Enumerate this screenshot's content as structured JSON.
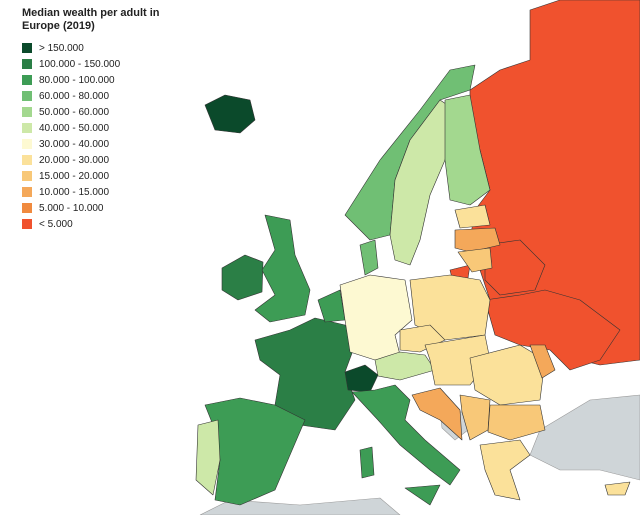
{
  "title": "Median wealth per adult in Europe (2019)",
  "legend": [
    {
      "label": "> 150.000",
      "color": "#0b4a2b"
    },
    {
      "label": "100.000 - 150.000",
      "color": "#2b7f46"
    },
    {
      "label": "80.000 - 100.000",
      "color": "#3d9c55"
    },
    {
      "label": "60.000 - 80.000",
      "color": "#70bf74"
    },
    {
      "label": "50.000 - 60.000",
      "color": "#a3d88f"
    },
    {
      "label": "40.000 - 50.000",
      "color": "#cde8a8"
    },
    {
      "label": "30.000 - 40.000",
      "color": "#fdf9d2"
    },
    {
      "label": "20.000 - 30.000",
      "color": "#fbe19a"
    },
    {
      "label": "15.000 - 20.000",
      "color": "#f8c878"
    },
    {
      "label": "10.000 - 15.000",
      "color": "#f4a85a"
    },
    {
      "label": "5.000 - 10.000",
      "color": "#f08a3f"
    },
    {
      "label": "< 5.000",
      "color": "#f0522e"
    }
  ]
}
